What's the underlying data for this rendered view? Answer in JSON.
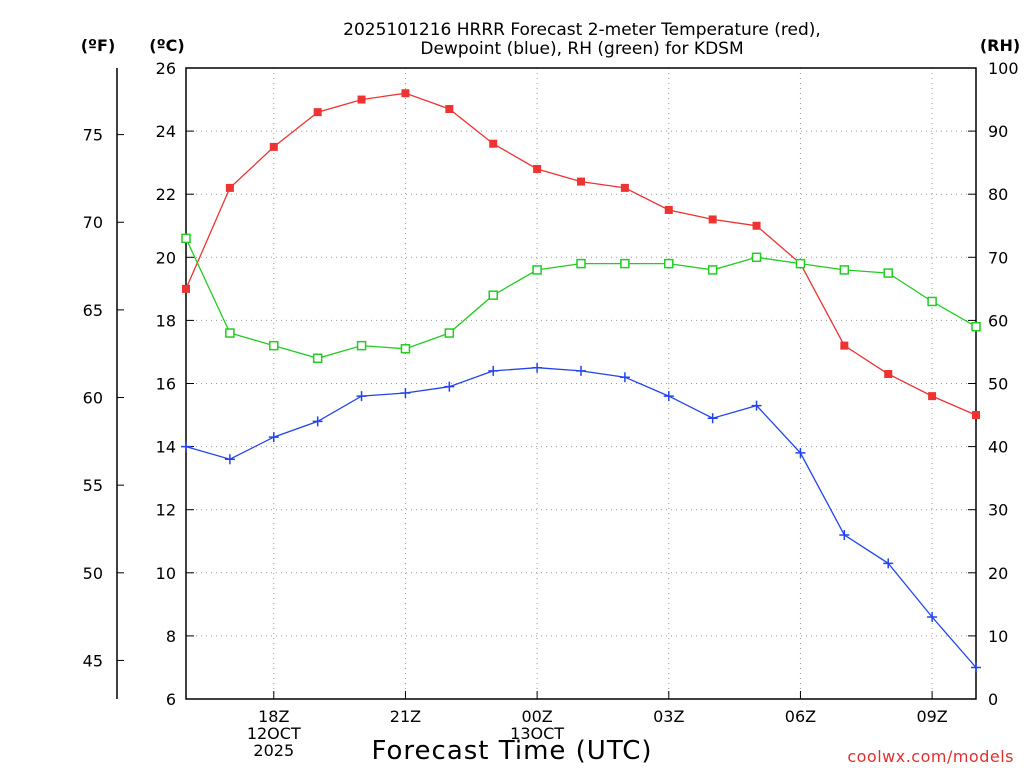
{
  "chart_data": {
    "type": "line",
    "title_lines": [
      "2025101216 HRRR Forecast 2-meter Temperature (red),",
      "Dewpoint (blue), RH (green) for KDSM"
    ],
    "xlabel": "Forecast Time (UTC)",
    "credit": "coolwx.com/models",
    "units": {
      "fahrenheit": "(ºF)",
      "celsius": "(ºC)",
      "rh": "(RH)"
    },
    "x_hours": [
      16,
      17,
      18,
      19,
      20,
      21,
      22,
      23,
      24,
      25,
      26,
      27,
      28,
      29,
      30,
      31,
      32,
      33,
      34
    ],
    "xlim": [
      16,
      34
    ],
    "x_ticks": [
      {
        "hour": 18,
        "lines": [
          "18Z",
          "12OCT",
          "2025"
        ]
      },
      {
        "hour": 21,
        "lines": [
          "21Z"
        ]
      },
      {
        "hour": 24,
        "lines": [
          "00Z",
          "13OCT"
        ]
      },
      {
        "hour": 27,
        "lines": [
          "03Z"
        ]
      },
      {
        "hour": 30,
        "lines": [
          "06Z"
        ]
      },
      {
        "hour": 33,
        "lines": [
          "09Z"
        ]
      }
    ],
    "celsius_axis": {
      "ylim": [
        6,
        26
      ],
      "ticks": [
        "26",
        "24",
        "22",
        "20",
        "18",
        "16",
        "14",
        "12",
        "10",
        "8",
        "6"
      ]
    },
    "fahrenheit_axis": {
      "ylim": [
        42.8,
        78.8
      ],
      "ticks": [
        "75",
        "70",
        "65",
        "60",
        "55",
        "50",
        "45"
      ]
    },
    "rh_axis": {
      "ylim": [
        0,
        100
      ],
      "ticks": [
        "100",
        "90",
        "80",
        "70",
        "60",
        "50",
        "40",
        "30",
        "20",
        "10",
        "0"
      ]
    },
    "series": [
      {
        "name": "2-meter Temperature",
        "axis": "celsius",
        "color": "#ee3333",
        "marker": "filled-square",
        "values": [
          19.0,
          22.2,
          23.5,
          24.6,
          25.0,
          25.2,
          24.7,
          23.6,
          22.8,
          22.4,
          22.2,
          21.5,
          21.2,
          21.0,
          19.8,
          17.2,
          16.3,
          15.6,
          15.0
        ]
      },
      {
        "name": "Dewpoint",
        "axis": "celsius",
        "color": "#2244ee",
        "marker": "plus",
        "values": [
          14.0,
          13.6,
          14.3,
          14.8,
          15.6,
          15.7,
          15.9,
          16.4,
          16.5,
          16.4,
          16.2,
          15.6,
          14.9,
          15.3,
          13.8,
          11.2,
          10.3,
          8.6,
          7.0
        ]
      },
      {
        "name": "RH",
        "axis": "rh",
        "color": "#22cc22",
        "marker": "hollow-square",
        "values": [
          73,
          58,
          56,
          54,
          56,
          55.5,
          58,
          64,
          68,
          69,
          69,
          69,
          68,
          70,
          69,
          68,
          67.5,
          63,
          59
        ]
      }
    ]
  }
}
